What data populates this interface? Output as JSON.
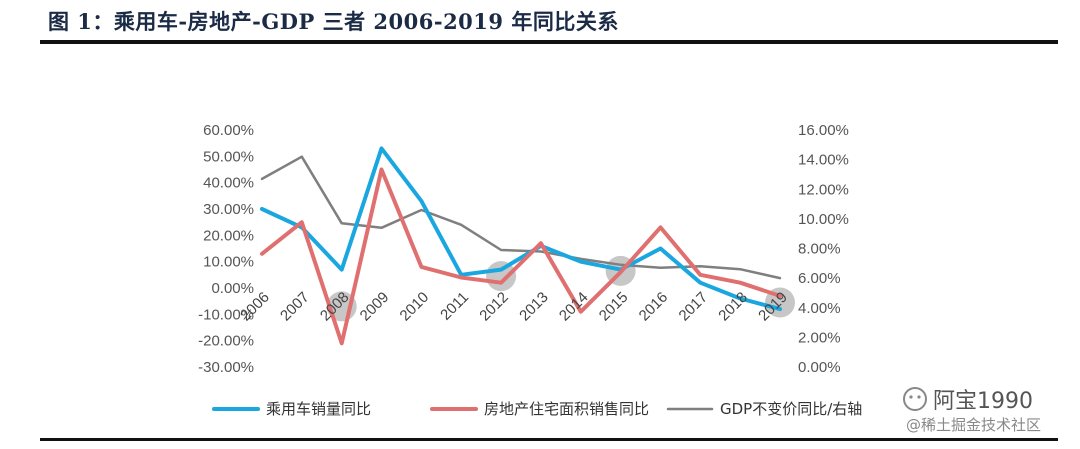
{
  "header": {
    "title": "图 1：乘用车-房地产-GDP 三者 2006-2019 年同比关系"
  },
  "watermark": {
    "account": "阿宝1990",
    "site": "@稀土掘金技术社区"
  },
  "chart_data": {
    "type": "line",
    "x": [
      "2006",
      "2007",
      "2008",
      "2009",
      "2010",
      "2011",
      "2012",
      "2013",
      "2014",
      "2015",
      "2016",
      "2017",
      "2018",
      "2019"
    ],
    "y_left": {
      "ylim": [
        -30,
        60
      ],
      "step": 10,
      "ticks": [
        "60.00%",
        "50.00%",
        "40.00%",
        "30.00%",
        "20.00%",
        "10.00%",
        "0.00%",
        "-10.00%",
        "-20.00%",
        "-30.00%"
      ]
    },
    "y_right": {
      "ylim": [
        0,
        16
      ],
      "step": 2,
      "ticks": [
        "16.00%",
        "14.00%",
        "12.00%",
        "10.00%",
        "8.00%",
        "6.00%",
        "4.00%",
        "2.00%",
        "0.00%"
      ]
    },
    "series": [
      {
        "name": "乘用车销量同比",
        "axis": "left",
        "color": "#1aa7e0",
        "values": [
          30,
          23,
          7,
          53,
          33,
          5,
          7,
          16,
          10,
          7,
          15,
          2,
          -4,
          -8
        ]
      },
      {
        "name": "房地产住宅面积销售同比",
        "axis": "left",
        "color": "#e07070",
        "values": [
          13,
          25,
          -21,
          45,
          8,
          4,
          2,
          17,
          -9,
          6,
          23,
          5,
          2,
          -3
        ]
      },
      {
        "name": "GDP不变价同比/右轴",
        "axis": "right",
        "color": "#7f7f7f",
        "values": [
          12.7,
          14.2,
          9.7,
          9.4,
          10.6,
          9.6,
          7.9,
          7.8,
          7.3,
          6.9,
          6.7,
          6.8,
          6.6,
          6.0
        ]
      }
    ],
    "highlights": [
      "2008",
      "2012",
      "2015",
      "2019"
    ],
    "legend_position": "bottom"
  }
}
